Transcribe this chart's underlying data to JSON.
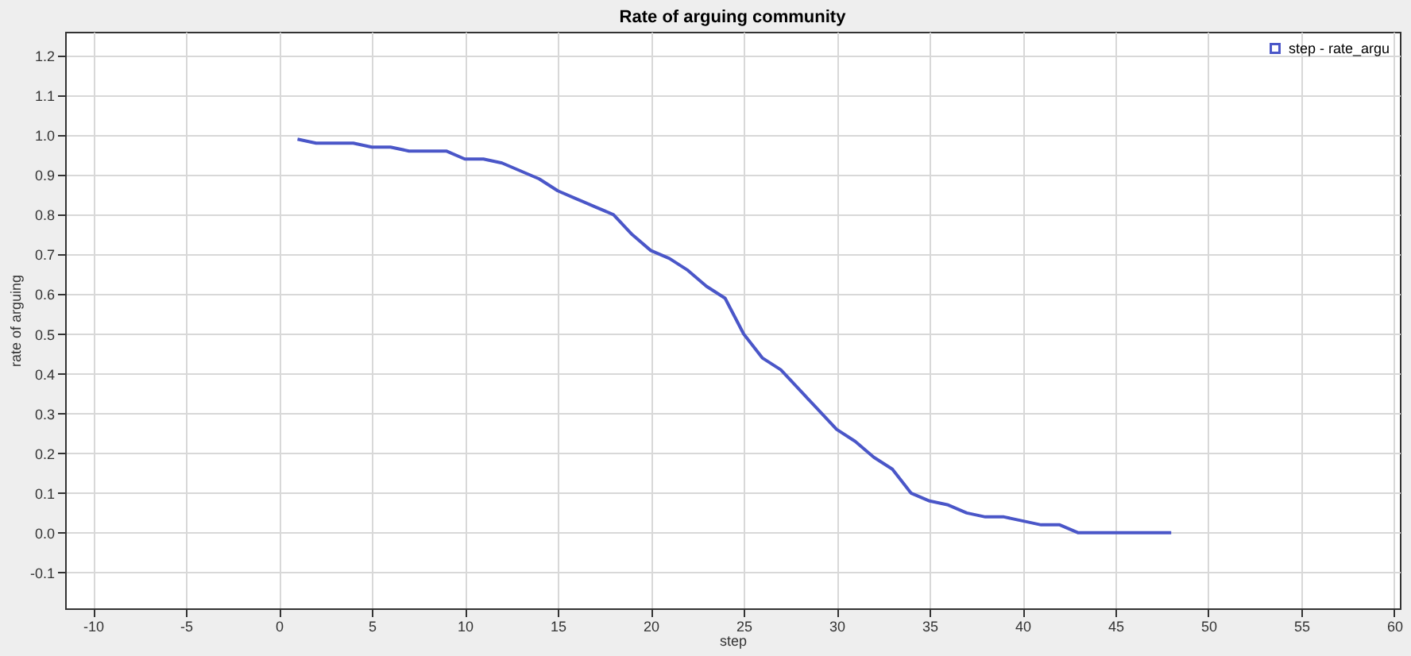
{
  "chart_data": {
    "type": "line",
    "title": "Rate of arguing community",
    "xlabel": "step",
    "ylabel": "rate of arguing",
    "x": [
      1,
      2,
      3,
      4,
      5,
      6,
      7,
      8,
      9,
      10,
      11,
      12,
      13,
      14,
      15,
      16,
      17,
      18,
      19,
      20,
      21,
      22,
      23,
      24,
      25,
      26,
      27,
      28,
      29,
      30,
      31,
      32,
      33,
      34,
      35,
      36,
      37,
      38,
      39,
      40,
      41,
      42,
      43,
      44,
      45,
      46,
      47,
      48
    ],
    "series": [
      {
        "name": "step - rate_argu",
        "color": "#4a56c8",
        "values": [
          0.99,
          0.98,
          0.98,
          0.98,
          0.97,
          0.97,
          0.96,
          0.96,
          0.96,
          0.94,
          0.94,
          0.93,
          0.91,
          0.89,
          0.86,
          0.84,
          0.82,
          0.8,
          0.75,
          0.71,
          0.69,
          0.66,
          0.62,
          0.59,
          0.5,
          0.44,
          0.41,
          0.36,
          0.31,
          0.26,
          0.23,
          0.19,
          0.16,
          0.1,
          0.08,
          0.07,
          0.05,
          0.04,
          0.04,
          0.03,
          0.02,
          0.02,
          0.0,
          0.0,
          0.0,
          0.0,
          0.0,
          0.0
        ]
      }
    ],
    "xlim": [
      -11.5,
      60.3
    ],
    "xticks": [
      -10,
      -5,
      0,
      5,
      10,
      15,
      20,
      25,
      30,
      35,
      40,
      45,
      50,
      55,
      60
    ],
    "ylim": [
      -0.19,
      1.26
    ],
    "yticks": [
      -0.1,
      {
        "value": 0,
        "label": "0.0"
      },
      0.1,
      0.2,
      0.3,
      0.4,
      0.5,
      0.6,
      0.7,
      0.8,
      0.9,
      {
        "value": 1,
        "label": "1.0"
      },
      1.1,
      1.2
    ],
    "grid": true,
    "legend": "top right",
    "marker": "none",
    "line_style": "solid"
  }
}
